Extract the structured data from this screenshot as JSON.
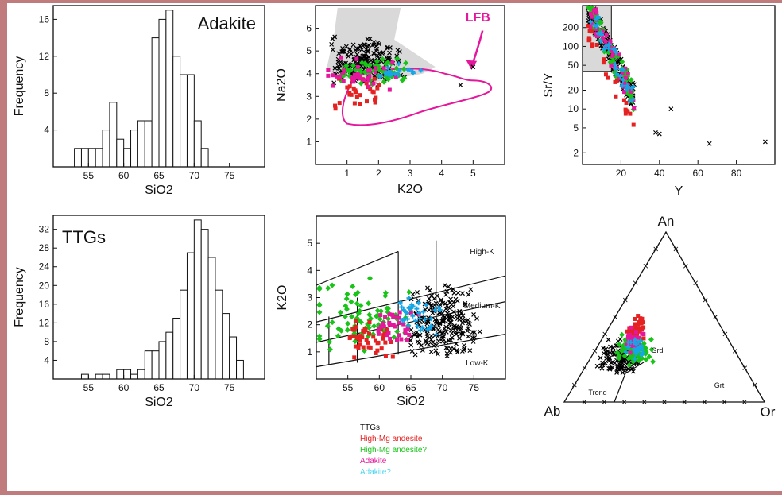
{
  "colors": {
    "ttg": "#000000",
    "hmg": "#e52222",
    "hmgq": "#19c419",
    "adk": "#e5179c",
    "adkq": "#15a6e8",
    "lfb": "#e5179c",
    "frame": "#c07c7c"
  },
  "legend": [
    {
      "label": "TTGs",
      "color": "#111111"
    },
    {
      "label": "High-Mg andesite",
      "color": "#e52222"
    },
    {
      "label": "High-Mg andesite?",
      "color": "#19c419"
    },
    {
      "label": "Adakite",
      "color": "#e5179c"
    },
    {
      "label": "Adakite?",
      "color": "#4fd6f0"
    }
  ],
  "chart_data": [
    {
      "type": "bar",
      "name_label": "Adakite",
      "title": "",
      "xlabel": "SiO2",
      "ylabel": "Frequency",
      "xlim": [
        50,
        80
      ],
      "ylim": [
        0,
        17.5
      ],
      "xticks": [
        55,
        60,
        65,
        70,
        75
      ],
      "yticks": [
        4,
        8,
        12,
        16
      ],
      "bin_width": 1,
      "bins": [
        53,
        54,
        55,
        56,
        57,
        58,
        59,
        60,
        61,
        62,
        63,
        64,
        65,
        66,
        67,
        68,
        69,
        70,
        71
      ],
      "values": [
        2,
        2,
        2,
        2,
        4,
        7,
        3,
        2,
        4,
        5,
        5,
        14,
        16,
        17,
        12,
        10,
        10,
        5,
        2
      ]
    },
    {
      "type": "bar",
      "name_label": "TTGs",
      "title": "",
      "xlabel": "SiO2",
      "ylabel": "Frequency",
      "xlim": [
        50,
        80
      ],
      "ylim": [
        0,
        35
      ],
      "xticks": [
        55,
        60,
        65,
        70,
        75
      ],
      "yticks": [
        4,
        8,
        12,
        16,
        20,
        24,
        28,
        32
      ],
      "bin_width": 1,
      "bins": [
        54,
        56,
        57,
        59,
        60,
        61,
        62,
        63,
        64,
        65,
        66,
        67,
        68,
        69,
        70,
        71,
        72,
        73,
        74,
        75,
        76
      ],
      "values": [
        1,
        1,
        1,
        2,
        2,
        1,
        2,
        6,
        6,
        8,
        10,
        13,
        19,
        27,
        34,
        32,
        26,
        19,
        14,
        9,
        4
      ]
    },
    {
      "type": "scatter",
      "xlabel": "K2O",
      "ylabel": "Na2O",
      "xlim": [
        0,
        6
      ],
      "ylim": [
        0,
        7
      ],
      "xticks": [
        1,
        2,
        3,
        4,
        5
      ],
      "yticks": [
        1,
        2,
        3,
        4,
        5,
        6
      ],
      "annotation": "LFB"
    },
    {
      "type": "scatter",
      "xlabel": "Y",
      "ylabel": "Sr/Y",
      "xlim": [
        0,
        100
      ],
      "ylog": true,
      "xticks": [
        20,
        40,
        60,
        80
      ],
      "yticks": [
        2,
        5,
        10,
        20,
        50,
        100,
        200
      ]
    },
    {
      "type": "scatter",
      "xlabel": "SiO2",
      "ylabel": "K2O",
      "xlim": [
        50,
        80
      ],
      "ylim": [
        0,
        6
      ],
      "xticks": [
        55,
        60,
        65,
        70,
        75
      ],
      "yticks": [
        1,
        2,
        3,
        4,
        5
      ],
      "field_labels": [
        "High-K",
        "Medium-K",
        "Low-K"
      ]
    },
    {
      "type": "scatter",
      "plot": "ternary",
      "vertex_labels": [
        "An",
        "Ab",
        "Or"
      ],
      "field_labels": [
        "Trond",
        "Grd",
        "Grt"
      ]
    }
  ]
}
